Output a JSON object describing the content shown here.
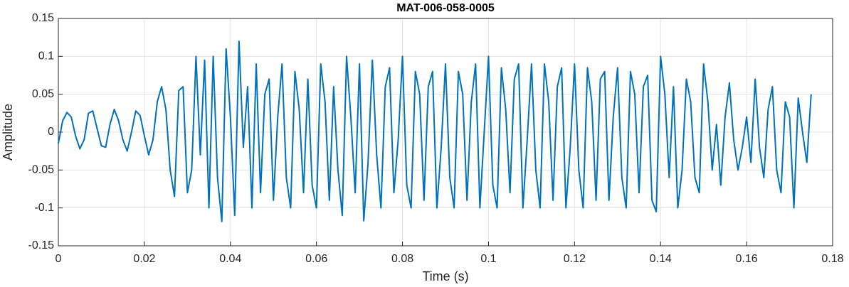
{
  "chart_data": {
    "type": "line",
    "title": "MAT-006-058-0005",
    "xlabel": "Time (s)",
    "ylabel": "Amplitude",
    "color": "#0072bd",
    "grid": true,
    "xlim": [
      0,
      0.18
    ],
    "xticks": [
      0,
      0.02,
      0.04,
      0.06,
      0.08,
      0.1,
      0.12,
      0.14,
      0.16,
      0.18
    ],
    "ylim": [
      -0.15,
      0.15
    ],
    "yticks": [
      -0.15,
      -0.1,
      -0.05,
      0,
      0.05,
      0.1,
      0.15
    ],
    "x": [
      0,
      0.001,
      0.002,
      0.003,
      0.004,
      0.005,
      0.006,
      0.007,
      0.008,
      0.009,
      0.01,
      0.011,
      0.012,
      0.013,
      0.014,
      0.015,
      0.016,
      0.017,
      0.018,
      0.019,
      0.02,
      0.021,
      0.022,
      0.023,
      0.024,
      0.025,
      0.026,
      0.027,
      0.028,
      0.029,
      0.03,
      0.031,
      0.032,
      0.033,
      0.034,
      0.035,
      0.036,
      0.037,
      0.038,
      0.039,
      0.04,
      0.041,
      0.042,
      0.043,
      0.044,
      0.045,
      0.046,
      0.047,
      0.048,
      0.049,
      0.05,
      0.051,
      0.052,
      0.053,
      0.054,
      0.055,
      0.056,
      0.057,
      0.058,
      0.059,
      0.06,
      0.061,
      0.062,
      0.063,
      0.064,
      0.065,
      0.066,
      0.067,
      0.068,
      0.069,
      0.07,
      0.071,
      0.072,
      0.073,
      0.074,
      0.075,
      0.076,
      0.077,
      0.078,
      0.079,
      0.08,
      0.081,
      0.082,
      0.083,
      0.084,
      0.085,
      0.086,
      0.087,
      0.088,
      0.089,
      0.09,
      0.091,
      0.092,
      0.093,
      0.094,
      0.095,
      0.096,
      0.097,
      0.098,
      0.099,
      0.1,
      0.101,
      0.102,
      0.103,
      0.104,
      0.105,
      0.106,
      0.107,
      0.108,
      0.109,
      0.11,
      0.111,
      0.112,
      0.113,
      0.114,
      0.115,
      0.116,
      0.117,
      0.118,
      0.119,
      0.12,
      0.121,
      0.122,
      0.123,
      0.124,
      0.125,
      0.126,
      0.127,
      0.128,
      0.129,
      0.13,
      0.131,
      0.132,
      0.133,
      0.134,
      0.135,
      0.136,
      0.137,
      0.138,
      0.139,
      0.14,
      0.141,
      0.142,
      0.143,
      0.144,
      0.145,
      0.146,
      0.147,
      0.148,
      0.149,
      0.15,
      0.151,
      0.152,
      0.153,
      0.154,
      0.155,
      0.156,
      0.157,
      0.158,
      0.159,
      0.16,
      0.161,
      0.162,
      0.163,
      0.164,
      0.165,
      0.166,
      0.167,
      0.168,
      0.169,
      0.17,
      0.171,
      0.172,
      0.173,
      0.174,
      0.175
    ],
    "values": [
      -0.015,
      0.015,
      0.026,
      0.02,
      -0.005,
      -0.022,
      -0.01,
      0.025,
      0.028,
      0.005,
      -0.018,
      -0.02,
      0.01,
      0.03,
      0.015,
      -0.01,
      -0.025,
      0,
      0.028,
      0.022,
      -0.005,
      -0.03,
      -0.01,
      0.04,
      0.06,
      0.03,
      -0.05,
      -0.085,
      0.055,
      0.06,
      -0.08,
      -0.05,
      0.1,
      -0.03,
      0.095,
      -0.1,
      0.1,
      -0.06,
      -0.118,
      0.11,
      0.02,
      -0.11,
      0.12,
      -0.02,
      0.06,
      -0.1,
      0.09,
      -0.08,
      0.05,
      0.07,
      -0.09,
      0.02,
      0.09,
      -0.06,
      -0.1,
      0.08,
      0.03,
      -0.08,
      0.07,
      -0.07,
      -0.1,
      0.09,
      0.04,
      -0.09,
      0.06,
      -0.05,
      -0.11,
      0.1,
      0.02,
      -0.08,
      0.09,
      -0.117,
      -0.04,
      0.095,
      -0.03,
      -0.1,
      0.06,
      0.085,
      -0.08,
      -0.01,
      0.1,
      -0.07,
      -0.1,
      0.08,
      0.05,
      -0.09,
      0.06,
      0.08,
      -0.1,
      -0.02,
      0.09,
      -0.06,
      -0.1,
      0.08,
      0.05,
      -0.09,
      0.04,
      0.09,
      -0.1,
      0,
      0.1,
      -0.07,
      -0.1,
      0.085,
      0.03,
      -0.08,
      0.07,
      0.09,
      -0.1,
      -0.01,
      0.09,
      -0.05,
      -0.1,
      0.09,
      0.04,
      -0.09,
      0.06,
      0.085,
      -0.1,
      -0.02,
      0.09,
      -0.05,
      -0.1,
      0.085,
      0.04,
      -0.09,
      0.07,
      0.08,
      -0.09,
      0.02,
      0.085,
      -0.06,
      -0.1,
      0.08,
      0.05,
      -0.08,
      0.06,
      0.075,
      -0.09,
      -0.105,
      0.1,
      0.05,
      -0.06,
      0.06,
      -0.1,
      -0.05,
      0.07,
      0.04,
      -0.06,
      -0.08,
      0.09,
      0.04,
      -0.05,
      0.01,
      -0.07,
      0.02,
      0.065,
      -0.01,
      -0.05,
      -0.02,
      0.02,
      -0.04,
      0.07,
      -0.02,
      -0.06,
      0.03,
      0.06,
      -0.05,
      -0.08,
      0.04,
      0.02,
      -0.1,
      0.045,
      0,
      -0.04,
      0.05
    ]
  }
}
